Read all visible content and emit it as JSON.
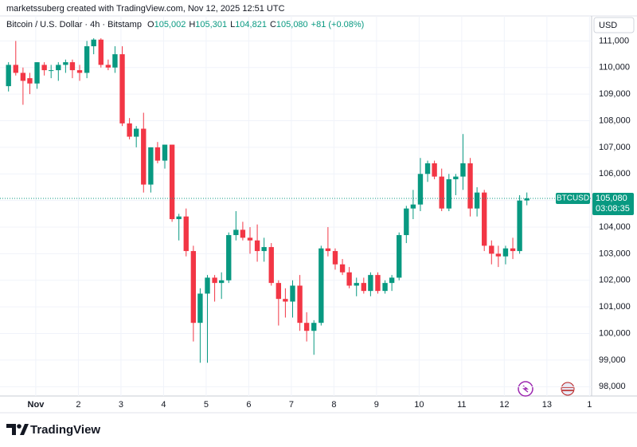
{
  "header": {
    "credit": "marketssuberg created with TradingView.com, Nov 12, 2025 12:51 UTC",
    "symbol": "Bitcoin / U.S. Dollar · 4h · Bitstamp",
    "ohlc": [
      {
        "key": "O",
        "value": "105,002"
      },
      {
        "key": "H",
        "value": "105,301"
      },
      {
        "key": "L",
        "value": "104,821"
      },
      {
        "key": "C",
        "value": "105,080"
      }
    ],
    "change": "+81 (+0.08%)",
    "currency": "USD",
    "logo": "TradingView"
  },
  "chart_data": {
    "type": "candlestick",
    "up_color": "#089981",
    "down_color": "#f23645",
    "grid": true,
    "x": [
      0.36,
      0.53,
      0.7,
      0.86,
      1.03,
      1.2,
      1.36,
      1.53,
      1.7,
      1.86,
      2.03,
      2.2,
      2.36,
      2.53,
      2.7,
      2.86,
      3.03,
      3.2,
      3.36,
      3.53,
      3.7,
      3.86,
      4.03,
      4.2,
      4.36,
      4.53,
      4.7,
      4.86,
      5.03,
      5.2,
      5.36,
      5.53,
      5.7,
      5.86,
      6.03,
      6.2,
      6.36,
      6.53,
      6.7,
      6.86,
      7.03,
      7.2,
      7.36,
      7.53,
      7.7,
      7.86,
      8.03,
      8.2,
      8.36,
      8.53,
      8.7,
      8.86,
      9.03,
      9.2,
      9.36,
      9.53,
      9.7,
      9.86,
      10.03,
      10.2,
      10.36,
      10.53,
      10.7,
      10.86,
      11.03,
      11.2,
      11.36,
      11.53,
      11.7,
      11.86,
      12.03,
      12.2,
      12.36,
      12.53
    ],
    "open": [
      109300,
      110100,
      109800,
      109600,
      109400,
      110100,
      109900,
      109900,
      110100,
      110200,
      109900,
      109800,
      110800,
      111050,
      110100,
      110000,
      110500,
      107900,
      107400,
      107700,
      105600,
      107000,
      106500,
      107100,
      104300,
      104400,
      103100,
      100400,
      101500,
      102100,
      101900,
      102000,
      103700,
      103900,
      103600,
      103500,
      103100,
      103250,
      101900,
      101300,
      101200,
      101800,
      100400,
      100100,
      100400,
      103200,
      103100,
      102600,
      102300,
      101800,
      101900,
      101600,
      102200,
      101600,
      101900,
      102100,
      103700,
      104700,
      104850,
      106000,
      106400,
      105900,
      104700,
      105800,
      105900,
      106400,
      104700,
      105300,
      103300,
      103000,
      102900,
      103200,
      103100,
      105002
    ],
    "high": [
      110200,
      111000,
      110000,
      109800,
      110200,
      110200,
      110100,
      110200,
      110300,
      110300,
      110100,
      111000,
      111100,
      111100,
      110300,
      110800,
      110800,
      108100,
      107800,
      108300,
      107000,
      107200,
      107100,
      107100,
      104500,
      104700,
      103300,
      101700,
      102200,
      102200,
      102300,
      103800,
      104600,
      104200,
      104000,
      104100,
      103600,
      103400,
      102000,
      101700,
      102000,
      102200,
      100800,
      100500,
      103300,
      104000,
      103200,
      102800,
      102500,
      102100,
      102100,
      102300,
      102300,
      102000,
      102200,
      103800,
      104800,
      105400,
      106600,
      106500,
      106500,
      106200,
      106000,
      106000,
      107500,
      106600,
      105500,
      105400,
      103500,
      103300,
      103300,
      103600,
      105200,
      105301
    ],
    "low": [
      109100,
      109700,
      108600,
      109000,
      109200,
      109700,
      109600,
      109500,
      109800,
      109600,
      109500,
      109600,
      110500,
      110000,
      109900,
      109800,
      107800,
      107300,
      107000,
      105300,
      105300,
      106400,
      106200,
      104200,
      103500,
      102900,
      99700,
      98900,
      98900,
      101200,
      101300,
      101900,
      103500,
      103500,
      103000,
      102700,
      102700,
      101800,
      100300,
      100600,
      100600,
      100100,
      99700,
      99200,
      100300,
      102900,
      102400,
      102200,
      101700,
      101400,
      101500,
      101400,
      101500,
      101500,
      101600,
      102000,
      103400,
      104300,
      104600,
      105700,
      105800,
      104600,
      104600,
      105200,
      105400,
      104400,
      104400,
      103100,
      102600,
      102500,
      102600,
      102800,
      103000,
      104821
    ],
    "close": [
      110100,
      109800,
      109500,
      109400,
      110200,
      109900,
      109900,
      110100,
      110200,
      109900,
      109800,
      110800,
      111050,
      110100,
      110000,
      110500,
      107900,
      107400,
      107700,
      105600,
      107000,
      106500,
      107100,
      104300,
      104400,
      103100,
      100400,
      101500,
      102100,
      101900,
      102000,
      103700,
      103900,
      103600,
      103500,
      103100,
      103250,
      101900,
      101300,
      101200,
      101800,
      100400,
      100100,
      100400,
      103200,
      103100,
      102600,
      102300,
      101800,
      101900,
      101600,
      102200,
      101600,
      101900,
      102100,
      103700,
      104700,
      104850,
      106000,
      106400,
      105900,
      104700,
      105800,
      105900,
      106400,
      104700,
      105300,
      103300,
      103000,
      102900,
      103200,
      103100,
      105000,
      105080
    ],
    "xlim": [
      0.16,
      14.05
    ],
    "xticks": [
      {
        "value": 1,
        "label": "Nov"
      },
      2,
      3,
      4,
      5,
      6,
      7,
      8,
      9,
      10,
      11,
      12,
      13,
      {
        "value": 14,
        "label": "1"
      }
    ],
    "ylim": [
      97650,
      111940
    ],
    "yticks": [
      {
        "value": 98000,
        "label": "98,000"
      },
      {
        "value": 99000,
        "label": "99,000"
      },
      {
        "value": 100000,
        "label": "100,000"
      },
      {
        "value": 101000,
        "label": "101,000"
      },
      {
        "value": 102000,
        "label": "102,000"
      },
      {
        "value": 103000,
        "label": "103,000"
      },
      {
        "value": 104000,
        "label": "104,000"
      },
      {
        "value": 105000,
        "label": "105,000"
      },
      {
        "value": 106000,
        "label": "106,000"
      },
      {
        "value": 107000,
        "label": "107,000"
      },
      {
        "value": 108000,
        "label": "108,000"
      },
      {
        "value": 109000,
        "label": "109,000"
      },
      {
        "value": 110000,
        "label": "110,000"
      },
      {
        "value": 111000,
        "label": "111,000"
      }
    ],
    "price_line": {
      "value": 105080,
      "label": "105,080",
      "symbol": "BTCUSD",
      "countdown": "03:08:35"
    }
  }
}
